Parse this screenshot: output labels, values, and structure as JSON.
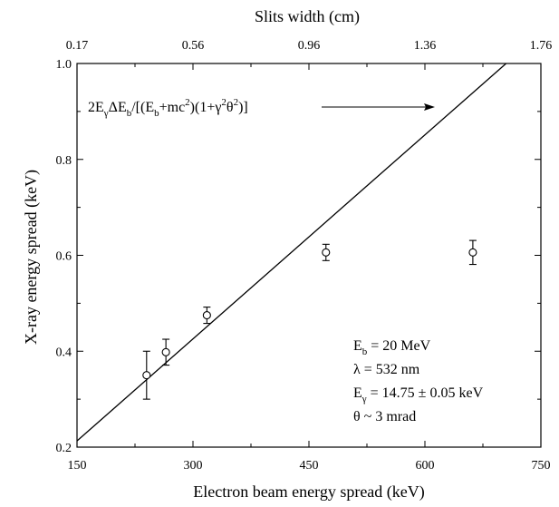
{
  "chart_data": {
    "type": "scatter",
    "xlabel": "Electron beam energy spread (keV)",
    "ylabel": "X-ray energy spread (keV)",
    "top_xlabel": "Slits width (cm)",
    "xlim": [
      150,
      750
    ],
    "ylim": [
      0.2,
      1.0
    ],
    "x_ticks": [
      "150",
      "300",
      "450",
      "600",
      "750"
    ],
    "y_ticks": [
      "0.2",
      "0.4",
      "0.6",
      "0.8",
      "1.0"
    ],
    "top_ticks": [
      "0.17",
      "0.56",
      "0.96",
      "1.36",
      "1.76"
    ],
    "points": [
      {
        "x": 240,
        "y": 0.35,
        "err": 0.05
      },
      {
        "x": 265,
        "y": 0.398,
        "err": 0.027
      },
      {
        "x": 318,
        "y": 0.475,
        "err": 0.017
      },
      {
        "x": 472,
        "y": 0.606,
        "err": 0.017
      },
      {
        "x": 662,
        "y": 0.606,
        "err": 0.025
      }
    ],
    "fit_line": {
      "x": [
        150,
        705
      ],
      "y": [
        0.213,
        1.0
      ]
    },
    "formula": {
      "parts": [
        {
          "t": "2E",
          "sub": false
        },
        {
          "t": "γ",
          "sub": true
        },
        {
          "t": "ΔE",
          "sub": false
        },
        {
          "t": "b",
          "sub": true
        },
        {
          "t": "/[(E",
          "sub": false
        },
        {
          "t": "b",
          "sub": true
        },
        {
          "t": "+mc",
          "sub": false
        },
        {
          "t": "2",
          "sup": true
        },
        {
          "t": ")(1+γ",
          "sub": false
        },
        {
          "t": "2",
          "sup": true
        },
        {
          "t": "θ",
          "sub": false
        },
        {
          "t": "2",
          "sup": true
        },
        {
          "t": ")]",
          "sub": false
        }
      ]
    },
    "params": [
      {
        "main": "E",
        "sub": "b",
        "rest": " = 20 MeV"
      },
      {
        "main": "λ",
        "sub": "",
        "rest": " = 532 nm"
      },
      {
        "main": "E",
        "sub": "γ",
        "rest": " = 14.75 ± 0.05 keV"
      },
      {
        "main": "θ",
        "sub": "",
        "rest": " ~ 3 mrad"
      }
    ],
    "grid": false,
    "legend": "none"
  }
}
